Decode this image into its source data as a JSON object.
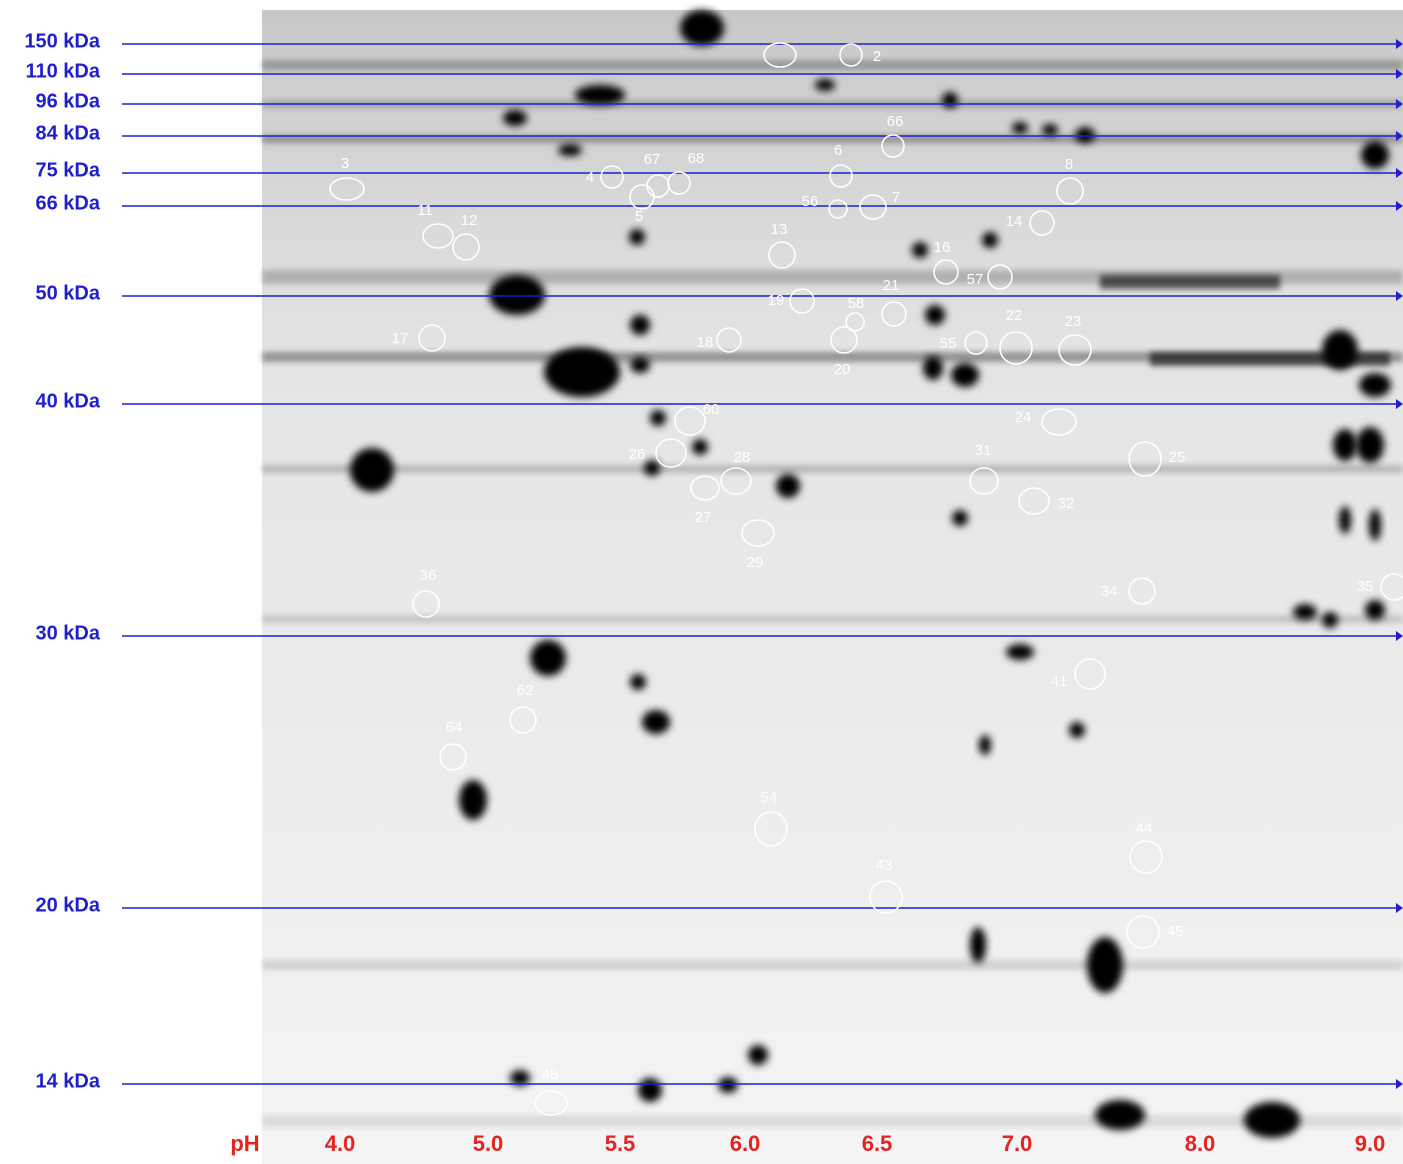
{
  "markers": [
    "150 kDa",
    "110 kDa",
    "96 kDa",
    "84 kDa",
    "75 kDa",
    "66 kDa",
    "50 kDa",
    "40 kDa",
    "30 kDa",
    "20 kDa",
    "14 kDa"
  ],
  "ph_axis": {
    "label": "pH",
    "ticks": [
      "4.0",
      "5.0",
      "5.5",
      "6.0",
      "6.5",
      "7.0",
      "8.0",
      "9.0"
    ]
  },
  "spots": [
    "2",
    "3",
    "4",
    "5",
    "67",
    "68",
    "6",
    "66",
    "56",
    "7",
    "8",
    "11",
    "12",
    "13",
    "14",
    "16",
    "57",
    "19",
    "58",
    "21",
    "17",
    "18",
    "20",
    "55",
    "22",
    "23",
    "60",
    "24",
    "26",
    "25",
    "28",
    "27",
    "31",
    "32",
    "29",
    "36",
    "34",
    "35",
    "41",
    "62",
    "64",
    "54",
    "44",
    "43",
    "45",
    "48"
  ]
}
